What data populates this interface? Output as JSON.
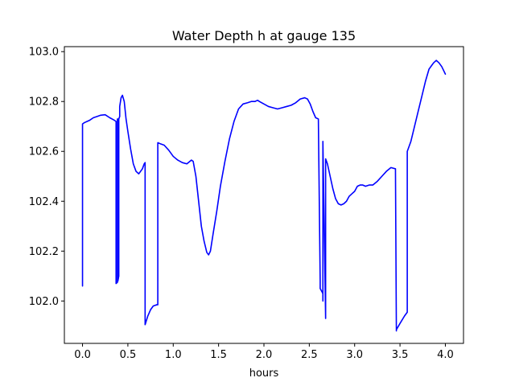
{
  "chart_data": {
    "type": "line",
    "title": "Water Depth h at gauge 135",
    "xlabel": "hours",
    "ylabel": "",
    "xlim": [
      -0.2,
      4.2
    ],
    "ylim": [
      101.83,
      103.02
    ],
    "xticks": [
      0.0,
      0.5,
      1.0,
      1.5,
      2.0,
      2.5,
      3.0,
      3.5,
      4.0
    ],
    "xtick_labels": [
      "0.0",
      "0.5",
      "1.0",
      "1.5",
      "2.0",
      "2.5",
      "3.0",
      "3.5",
      "4.0"
    ],
    "yticks": [
      102.0,
      102.2,
      102.4,
      102.6,
      102.8,
      103.0
    ],
    "ytick_labels": [
      "102.0",
      "102.2",
      "102.4",
      "102.6",
      "102.8",
      "103.0"
    ],
    "grid": false,
    "series": [
      {
        "name": "",
        "color": "#0000ff",
        "x": [
          0.0,
          0.0,
          0.02,
          0.05,
          0.08,
          0.12,
          0.16,
          0.2,
          0.25,
          0.3,
          0.35,
          0.37,
          0.37,
          0.385,
          0.385,
          0.39,
          0.39,
          0.4,
          0.4,
          0.41,
          0.41,
          0.425,
          0.44,
          0.46,
          0.48,
          0.5,
          0.53,
          0.56,
          0.59,
          0.62,
          0.64,
          0.66,
          0.68,
          0.69,
          0.69,
          0.72,
          0.75,
          0.78,
          0.82,
          0.83,
          0.83,
          0.86,
          0.9,
          0.95,
          1.0,
          1.05,
          1.1,
          1.15,
          1.2,
          1.22,
          1.25,
          1.28,
          1.31,
          1.34,
          1.37,
          1.39,
          1.41,
          1.44,
          1.48,
          1.52,
          1.57,
          1.62,
          1.67,
          1.72,
          1.77,
          1.82,
          1.86,
          1.9,
          1.93,
          1.95,
          2.0,
          2.05,
          2.1,
          2.15,
          2.2,
          2.25,
          2.3,
          2.35,
          2.4,
          2.45,
          2.48,
          2.51,
          2.54,
          2.57,
          2.6,
          2.62,
          2.62,
          2.65,
          2.65,
          2.65,
          2.68,
          2.68,
          2.7,
          2.73,
          2.76,
          2.79,
          2.82,
          2.85,
          2.88,
          2.91,
          2.94,
          2.97,
          3.0,
          3.03,
          3.06,
          3.09,
          3.12,
          3.16,
          3.2,
          3.25,
          3.3,
          3.35,
          3.4,
          3.45,
          3.46,
          3.46,
          3.5,
          3.55,
          3.58,
          3.58,
          3.62,
          3.66,
          3.7,
          3.74,
          3.78,
          3.82,
          3.85,
          3.87,
          3.9,
          3.93,
          3.96,
          3.98,
          4.0
        ],
        "y": [
          102.06,
          102.71,
          102.715,
          102.72,
          102.725,
          102.735,
          102.74,
          102.745,
          102.747,
          102.735,
          102.725,
          102.72,
          102.07,
          102.075,
          102.73,
          102.73,
          102.08,
          102.1,
          102.73,
          102.74,
          102.78,
          102.815,
          102.825,
          102.8,
          102.73,
          102.68,
          102.61,
          102.55,
          102.52,
          102.51,
          102.52,
          102.53,
          102.55,
          102.555,
          101.905,
          101.94,
          101.965,
          101.98,
          101.985,
          101.985,
          102.635,
          102.63,
          102.625,
          102.605,
          102.58,
          102.565,
          102.555,
          102.55,
          102.565,
          102.56,
          102.5,
          102.4,
          102.3,
          102.24,
          102.195,
          102.185,
          102.2,
          102.27,
          102.36,
          102.46,
          102.56,
          102.65,
          102.72,
          102.77,
          102.79,
          102.795,
          102.8,
          102.8,
          102.805,
          102.8,
          102.79,
          102.78,
          102.775,
          102.77,
          102.775,
          102.78,
          102.785,
          102.795,
          102.81,
          102.815,
          102.81,
          102.79,
          102.76,
          102.735,
          102.73,
          102.08,
          102.05,
          102.03,
          102.0,
          102.64,
          101.93,
          102.57,
          102.55,
          102.5,
          102.45,
          102.41,
          102.39,
          102.385,
          102.39,
          102.4,
          102.42,
          102.43,
          102.44,
          102.46,
          102.465,
          102.465,
          102.46,
          102.465,
          102.465,
          102.48,
          102.5,
          102.52,
          102.535,
          102.53,
          101.88,
          101.885,
          101.91,
          101.94,
          101.955,
          102.6,
          102.64,
          102.7,
          102.76,
          102.82,
          102.88,
          102.93,
          102.945,
          102.955,
          102.965,
          102.955,
          102.94,
          102.925,
          102.91
        ]
      }
    ]
  }
}
